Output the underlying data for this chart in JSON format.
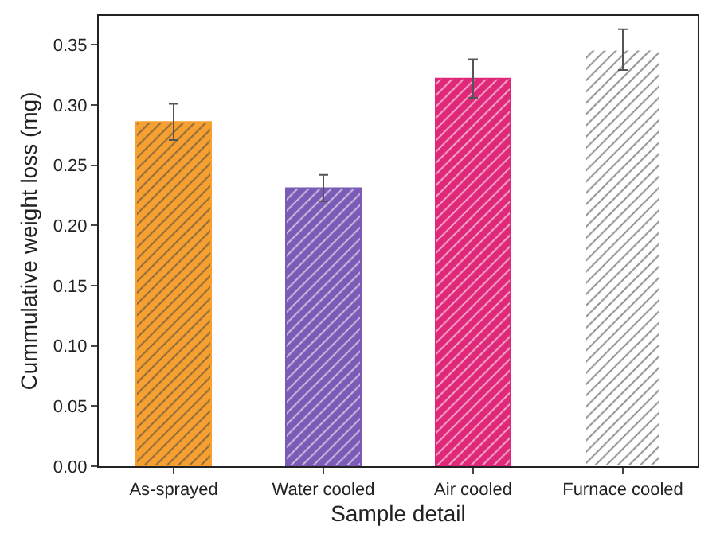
{
  "chart_data": {
    "type": "bar",
    "xlabel": "Sample detail",
    "ylabel": "Cummulative weight loss (mg)",
    "categories": [
      "As-sprayed",
      "Water cooled",
      "Air cooled",
      "Furnace cooled"
    ],
    "values": [
      0.286,
      0.231,
      0.322,
      0.346
    ],
    "colors": [
      "#f5a030",
      "#7b5bb5",
      "#e0287a",
      "#ffffff"
    ],
    "errors": [
      0.015,
      0.011,
      0.016,
      0.017
    ],
    "ylim": [
      0,
      0.374
    ],
    "yticks": [
      {
        "value": 0,
        "label": "0.00"
      },
      {
        "value": 0.05,
        "label": "0.05"
      },
      {
        "value": 0.1,
        "label": "0.10"
      },
      {
        "value": 0.15,
        "label": "0.15"
      },
      {
        "value": 0.2,
        "label": "0.20"
      },
      {
        "value": 0.25,
        "label": "0.25"
      },
      {
        "value": 0.3,
        "label": "0.30"
      },
      {
        "value": 0.35,
        "label": "0.35"
      }
    ],
    "grid": false
  }
}
